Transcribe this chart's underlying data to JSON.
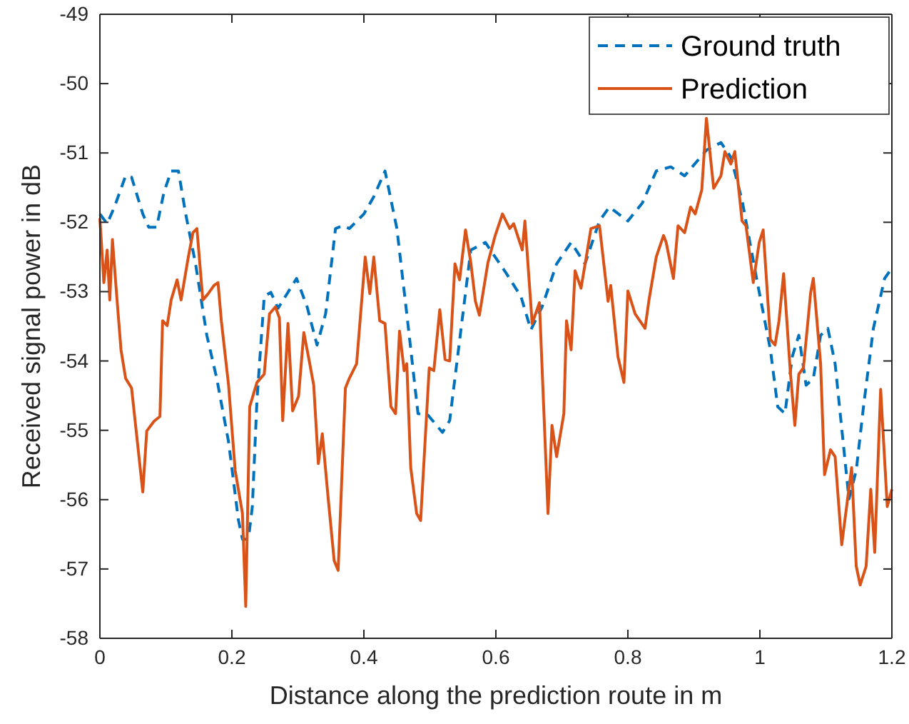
{
  "chart_data": {
    "type": "line",
    "xlabel": "Distance along the prediction route in m",
    "ylabel": "Received signal power in dB",
    "xlim": [
      0,
      1.2
    ],
    "xticks": [
      0,
      0.2,
      0.4,
      0.6,
      0.8,
      1,
      1.2
    ],
    "ylim": [
      -58,
      -49
    ],
    "yticks": [
      -58,
      -57,
      -56,
      -55,
      -54,
      -53,
      -52,
      -51,
      -50,
      -49
    ],
    "grid": false,
    "legend": "top right",
    "marker": "none",
    "series": [
      {
        "name": "Ground truth",
        "color": "#0072bd",
        "line_style": "dashed",
        "x": [
          0,
          0.011,
          0.022,
          0.039,
          0.048,
          0.065,
          0.074,
          0.086,
          0.097,
          0.108,
          0.119,
          0.13,
          0.145,
          0.162,
          0.177,
          0.195,
          0.21,
          0.216,
          0.225,
          0.231,
          0.238,
          0.249,
          0.259,
          0.27,
          0.281,
          0.298,
          0.314,
          0.329,
          0.342,
          0.357,
          0.368,
          0.378,
          0.4,
          0.415,
          0.432,
          0.45,
          0.465,
          0.482,
          0.497,
          0.519,
          0.53,
          0.562,
          0.584,
          0.616,
          0.638,
          0.653,
          0.67,
          0.692,
          0.714,
          0.735,
          0.757,
          0.772,
          0.8,
          0.822,
          0.843,
          0.865,
          0.886,
          0.919,
          0.941,
          0.956,
          0.973,
          0.995,
          1.016,
          1.027,
          1.038,
          1.049,
          1.059,
          1.07,
          1.081,
          1.092,
          1.103,
          1.114,
          1.124,
          1.135,
          1.146,
          1.157,
          1.172,
          1.189,
          1.2
        ],
        "values": [
          -51.88,
          -52.02,
          -51.78,
          -51.33,
          -51.35,
          -51.88,
          -52.07,
          -52.07,
          -51.57,
          -51.26,
          -51.26,
          -51.88,
          -52.6,
          -53.63,
          -54.25,
          -55.17,
          -56.3,
          -56.57,
          -56.57,
          -56.1,
          -54.56,
          -53.07,
          -53.01,
          -53.24,
          -53.07,
          -52.81,
          -53.22,
          -53.77,
          -53.32,
          -52.09,
          -52.05,
          -52.09,
          -51.88,
          -51.63,
          -51.26,
          -52.09,
          -53.32,
          -54.76,
          -54.78,
          -55.03,
          -54.86,
          -52.4,
          -52.29,
          -52.74,
          -53.07,
          -53.55,
          -53.22,
          -52.6,
          -52.29,
          -52.6,
          -51.98,
          -51.78,
          -51.98,
          -51.72,
          -51.26,
          -51.2,
          -51.33,
          -50.96,
          -50.85,
          -51.06,
          -51.68,
          -52.81,
          -53.84,
          -54.66,
          -54.76,
          -53.94,
          -53.63,
          -54.35,
          -54.25,
          -53.63,
          -53.53,
          -54.04,
          -54.97,
          -55.99,
          -55.58,
          -54.66,
          -53.53,
          -52.81,
          -52.66
        ]
      },
      {
        "name": "Prediction",
        "color": "#d95319",
        "line_style": "solid",
        "x": [
          0,
          0.006,
          0.011,
          0.015,
          0.019,
          0.026,
          0.032,
          0.039,
          0.048,
          0.065,
          0.071,
          0.082,
          0.091,
          0.095,
          0.102,
          0.108,
          0.117,
          0.123,
          0.134,
          0.141,
          0.147,
          0.156,
          0.164,
          0.173,
          0.179,
          0.184,
          0.195,
          0.205,
          0.216,
          0.221,
          0.227,
          0.238,
          0.249,
          0.257,
          0.266,
          0.272,
          0.277,
          0.285,
          0.292,
          0.301,
          0.309,
          0.318,
          0.324,
          0.331,
          0.337,
          0.346,
          0.355,
          0.361,
          0.372,
          0.378,
          0.389,
          0.402,
          0.409,
          0.415,
          0.424,
          0.432,
          0.441,
          0.448,
          0.454,
          0.461,
          0.465,
          0.471,
          0.48,
          0.486,
          0.499,
          0.506,
          0.515,
          0.523,
          0.53,
          0.538,
          0.545,
          0.554,
          0.562,
          0.569,
          0.575,
          0.588,
          0.599,
          0.61,
          0.621,
          0.627,
          0.64,
          0.644,
          0.655,
          0.666,
          0.679,
          0.685,
          0.692,
          0.703,
          0.707,
          0.714,
          0.72,
          0.729,
          0.737,
          0.744,
          0.757,
          0.77,
          0.774,
          0.785,
          0.794,
          0.8,
          0.811,
          0.826,
          0.832,
          0.843,
          0.854,
          0.858,
          0.869,
          0.876,
          0.886,
          0.895,
          0.902,
          0.912,
          0.919,
          0.93,
          0.941,
          0.947,
          0.956,
          0.962,
          0.973,
          0.979,
          0.99,
          0.999,
          1.005,
          1.016,
          1.023,
          1.029,
          1.036,
          1.046,
          1.053,
          1.059,
          1.066,
          1.077,
          1.081,
          1.092,
          1.098,
          1.107,
          1.114,
          1.124,
          1.139,
          1.146,
          1.152,
          1.161,
          1.168,
          1.174,
          1.183,
          1.193,
          1.2
        ],
        "values": [
          -51.94,
          -52.87,
          -52.4,
          -53.12,
          -52.25,
          -53.12,
          -53.84,
          -54.25,
          -54.39,
          -55.89,
          -55.01,
          -54.87,
          -54.8,
          -53.42,
          -53.49,
          -53.12,
          -52.83,
          -53.12,
          -52.5,
          -52.15,
          -52.09,
          -53.12,
          -53.03,
          -52.91,
          -52.87,
          -53.42,
          -54.35,
          -55.58,
          -56.2,
          -57.54,
          -54.66,
          -54.31,
          -54.19,
          -53.32,
          -53.22,
          -53.38,
          -54.86,
          -53.46,
          -54.72,
          -54.51,
          -53.59,
          -54.04,
          -54.35,
          -55.48,
          -55.05,
          -55.99,
          -56.88,
          -57.02,
          -54.39,
          -54.25,
          -54.04,
          -52.5,
          -53.03,
          -52.5,
          -53.42,
          -53.46,
          -54.66,
          -54.76,
          -53.57,
          -54.14,
          -54.04,
          -55.54,
          -56.2,
          -56.3,
          -54.1,
          -54.14,
          -53.26,
          -53.98,
          -54.0,
          -52.6,
          -52.83,
          -52.11,
          -52.58,
          -53.14,
          -53.34,
          -52.58,
          -52.19,
          -51.88,
          -52.09,
          -52.02,
          -52.4,
          -51.98,
          -53.46,
          -53.16,
          -56.2,
          -54.93,
          -55.38,
          -54.76,
          -53.42,
          -53.84,
          -52.7,
          -52.95,
          -52.5,
          -52.09,
          -52.05,
          -53.14,
          -52.91,
          -53.94,
          -54.31,
          -52.99,
          -53.32,
          -53.53,
          -53.12,
          -52.5,
          -52.19,
          -52.29,
          -52.81,
          -52.05,
          -52.15,
          -51.78,
          -51.88,
          -51.53,
          -50.5,
          -51.51,
          -51.33,
          -50.98,
          -51.16,
          -50.98,
          -51.98,
          -52.05,
          -52.87,
          -52.29,
          -52.11,
          -53.69,
          -53.77,
          -53.42,
          -52.74,
          -54.14,
          -54.93,
          -54.19,
          -54.1,
          -53.01,
          -52.81,
          -54.04,
          -55.64,
          -55.28,
          -55.38,
          -56.65,
          -55.54,
          -56.96,
          -57.23,
          -56.96,
          -55.85,
          -56.76,
          -54.41,
          -56.1,
          -55.85
        ]
      }
    ]
  }
}
